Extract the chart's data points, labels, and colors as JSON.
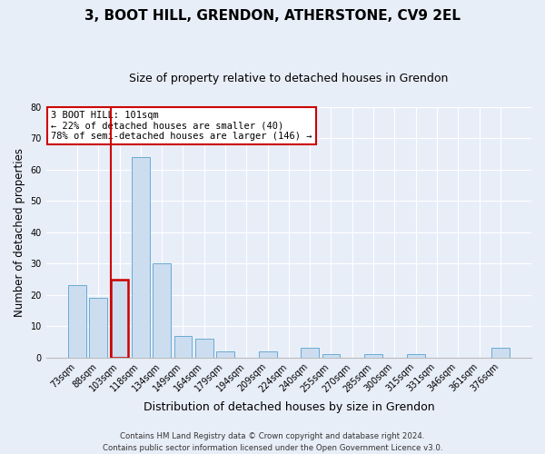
{
  "title": "3, BOOT HILL, GRENDON, ATHERSTONE, CV9 2EL",
  "subtitle": "Size of property relative to detached houses in Grendon",
  "xlabel": "Distribution of detached houses by size in Grendon",
  "ylabel": "Number of detached properties",
  "categories": [
    "73sqm",
    "88sqm",
    "103sqm",
    "118sqm",
    "134sqm",
    "149sqm",
    "164sqm",
    "179sqm",
    "194sqm",
    "209sqm",
    "224sqm",
    "240sqm",
    "255sqm",
    "270sqm",
    "285sqm",
    "300sqm",
    "315sqm",
    "331sqm",
    "346sqm",
    "361sqm",
    "376sqm"
  ],
  "values": [
    23,
    19,
    25,
    64,
    30,
    7,
    6,
    2,
    0,
    2,
    0,
    3,
    1,
    0,
    1,
    0,
    1,
    0,
    0,
    0,
    3
  ],
  "bar_color": "#ccddf0",
  "bar_edge_color": "#6aaad4",
  "highlight_bar_index": 2,
  "highlight_color": "#cc0000",
  "highlight_line_color": "#cc0000",
  "ylim": [
    0,
    80
  ],
  "yticks": [
    0,
    10,
    20,
    30,
    40,
    50,
    60,
    70,
    80
  ],
  "annotation_title": "3 BOOT HILL: 101sqm",
  "annotation_line1": "← 22% of detached houses are smaller (40)",
  "annotation_line2": "78% of semi-detached houses are larger (146) →",
  "annotation_box_color": "#ffffff",
  "annotation_box_edge": "#cc0000",
  "footer_line1": "Contains HM Land Registry data © Crown copyright and database right 2024.",
  "footer_line2": "Contains public sector information licensed under the Open Government Licence v3.0.",
  "background_color": "#e8eef8",
  "grid_color": "#ffffff",
  "title_fontsize": 11,
  "subtitle_fontsize": 9,
  "axis_label_fontsize": 8.5,
  "tick_fontsize": 7,
  "footer_fontsize": 6.2
}
